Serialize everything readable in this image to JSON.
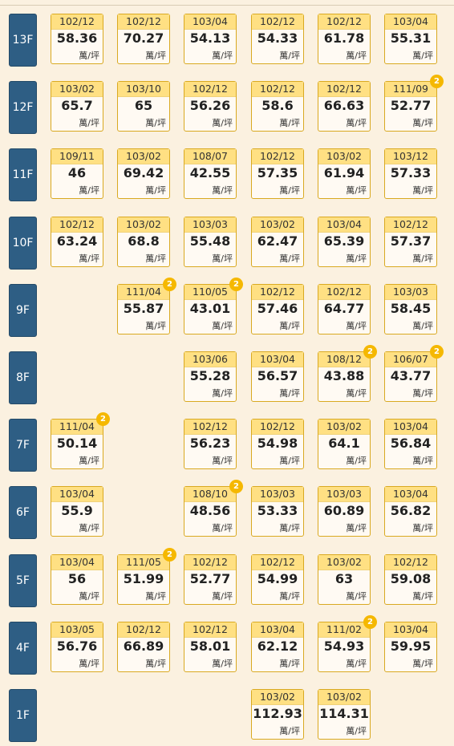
{
  "unit_label": "萬/坪",
  "floors": [
    {
      "label": "13F",
      "units": [
        {
          "col": 0,
          "date": "102/12",
          "price": "58.36"
        },
        {
          "col": 1,
          "date": "102/12",
          "price": "70.27"
        },
        {
          "col": 2,
          "date": "103/04",
          "price": "54.13"
        },
        {
          "col": 3,
          "date": "102/12",
          "price": "54.33"
        },
        {
          "col": 4,
          "date": "102/12",
          "price": "61.78"
        },
        {
          "col": 5,
          "date": "103/04",
          "price": "55.31"
        }
      ]
    },
    {
      "label": "12F",
      "units": [
        {
          "col": 0,
          "date": "103/02",
          "price": "65.7"
        },
        {
          "col": 1,
          "date": "103/10",
          "price": "65"
        },
        {
          "col": 2,
          "date": "102/12",
          "price": "56.26"
        },
        {
          "col": 3,
          "date": "102/12",
          "price": "58.6"
        },
        {
          "col": 4,
          "date": "102/12",
          "price": "66.63"
        },
        {
          "col": 5,
          "date": "111/09",
          "price": "52.77",
          "badge": "2"
        }
      ]
    },
    {
      "label": "11F",
      "units": [
        {
          "col": 0,
          "date": "109/11",
          "price": "46"
        },
        {
          "col": 1,
          "date": "103/02",
          "price": "69.42"
        },
        {
          "col": 2,
          "date": "108/07",
          "price": "42.55"
        },
        {
          "col": 3,
          "date": "102/12",
          "price": "57.35"
        },
        {
          "col": 4,
          "date": "103/02",
          "price": "61.94"
        },
        {
          "col": 5,
          "date": "103/12",
          "price": "57.33"
        }
      ]
    },
    {
      "label": "10F",
      "units": [
        {
          "col": 0,
          "date": "102/12",
          "price": "63.24"
        },
        {
          "col": 1,
          "date": "103/02",
          "price": "68.8"
        },
        {
          "col": 2,
          "date": "103/03",
          "price": "55.48"
        },
        {
          "col": 3,
          "date": "103/02",
          "price": "62.47"
        },
        {
          "col": 4,
          "date": "103/04",
          "price": "65.39"
        },
        {
          "col": 5,
          "date": "102/12",
          "price": "57.37"
        }
      ]
    },
    {
      "label": "9F",
      "units": [
        {
          "col": 1,
          "date": "111/04",
          "price": "55.87",
          "badge": "2"
        },
        {
          "col": 2,
          "date": "110/05",
          "price": "43.01",
          "badge": "2"
        },
        {
          "col": 3,
          "date": "102/12",
          "price": "57.46"
        },
        {
          "col": 4,
          "date": "102/12",
          "price": "64.77"
        },
        {
          "col": 5,
          "date": "103/03",
          "price": "58.45"
        }
      ]
    },
    {
      "label": "8F",
      "units": [
        {
          "col": 2,
          "date": "103/06",
          "price": "55.28"
        },
        {
          "col": 3,
          "date": "103/04",
          "price": "56.57"
        },
        {
          "col": 4,
          "date": "108/12",
          "price": "43.88",
          "badge": "2"
        },
        {
          "col": 5,
          "date": "106/07",
          "price": "43.77",
          "badge": "2"
        }
      ]
    },
    {
      "label": "7F",
      "units": [
        {
          "col": 0,
          "date": "111/04",
          "price": "50.14",
          "badge": "2"
        },
        {
          "col": 2,
          "date": "102/12",
          "price": "56.23"
        },
        {
          "col": 3,
          "date": "102/12",
          "price": "54.98"
        },
        {
          "col": 4,
          "date": "103/02",
          "price": "64.1"
        },
        {
          "col": 5,
          "date": "103/04",
          "price": "56.84"
        }
      ]
    },
    {
      "label": "6F",
      "units": [
        {
          "col": 0,
          "date": "103/04",
          "price": "55.9"
        },
        {
          "col": 2,
          "date": "108/10",
          "price": "48.56",
          "badge": "2"
        },
        {
          "col": 3,
          "date": "103/03",
          "price": "53.33"
        },
        {
          "col": 4,
          "date": "103/03",
          "price": "60.89"
        },
        {
          "col": 5,
          "date": "103/04",
          "price": "56.82"
        }
      ]
    },
    {
      "label": "5F",
      "units": [
        {
          "col": 0,
          "date": "103/04",
          "price": "56"
        },
        {
          "col": 1,
          "date": "111/05",
          "price": "51.99",
          "badge": "2"
        },
        {
          "col": 2,
          "date": "102/12",
          "price": "52.77"
        },
        {
          "col": 3,
          "date": "102/12",
          "price": "54.99"
        },
        {
          "col": 4,
          "date": "103/02",
          "price": "63"
        },
        {
          "col": 5,
          "date": "102/12",
          "price": "59.08"
        }
      ]
    },
    {
      "label": "4F",
      "units": [
        {
          "col": 0,
          "date": "103/05",
          "price": "56.76"
        },
        {
          "col": 1,
          "date": "102/12",
          "price": "66.89"
        },
        {
          "col": 2,
          "date": "102/12",
          "price": "58.01"
        },
        {
          "col": 3,
          "date": "103/04",
          "price": "62.12"
        },
        {
          "col": 4,
          "date": "111/02",
          "price": "54.93",
          "badge": "2"
        },
        {
          "col": 5,
          "date": "103/04",
          "price": "59.95"
        }
      ]
    },
    {
      "label": "1F",
      "units": [
        {
          "col": 3,
          "date": "103/02",
          "price": "112.93"
        },
        {
          "col": 4,
          "date": "103/02",
          "price": "114.31"
        }
      ]
    }
  ]
}
